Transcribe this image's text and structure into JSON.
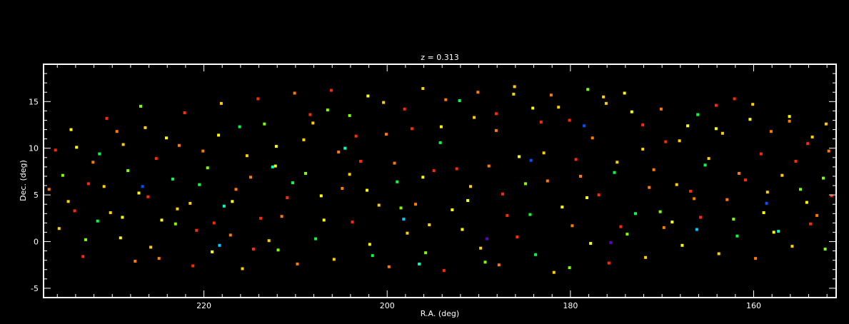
{
  "chart_data": {
    "type": "scatter",
    "title": "z = 0.313",
    "xlabel": "R.A. (deg)",
    "ylabel": "Dec. (deg)",
    "xlim": [
      237.5,
      151.0
    ],
    "ylim": [
      -6.0,
      19.0
    ],
    "x_ticks": [
      220,
      200,
      180,
      160
    ],
    "y_ticks": [
      -5,
      0,
      5,
      10,
      15
    ],
    "x_minor_step": 2,
    "y_minor_step": 1,
    "grid": false,
    "legend": "none",
    "background_color": "#000000",
    "axis_color": "#ffffff",
    "palette": [
      "#ff2a00",
      "#ff7a00",
      "#ffd000",
      "#ffff00",
      "#7cff00",
      "#00ff40",
      "#00ffc0",
      "#00c8ff",
      "#0050ff",
      "#6000c0"
    ],
    "points": [
      [
        236.2,
        9.8,
        0
      ],
      [
        235.4,
        7.1,
        4
      ],
      [
        234.8,
        4.3,
        2
      ],
      [
        233.9,
        10.1,
        3
      ],
      [
        232.6,
        6.2,
        0
      ],
      [
        231.4,
        9.4,
        5
      ],
      [
        230.2,
        3.1,
        2
      ],
      [
        229.5,
        11.8,
        1
      ],
      [
        228.3,
        7.6,
        4
      ],
      [
        227.1,
        5.2,
        3
      ],
      [
        226.4,
        12.2,
        2
      ],
      [
        225.2,
        8.9,
        0
      ],
      [
        224.6,
        2.3,
        3
      ],
      [
        223.4,
        6.7,
        5
      ],
      [
        222.7,
        10.3,
        1
      ],
      [
        221.5,
        4.1,
        2
      ],
      [
        220.8,
        1.2,
        0
      ],
      [
        219.6,
        7.9,
        4
      ],
      [
        218.4,
        11.4,
        3
      ],
      [
        217.8,
        3.8,
        6
      ],
      [
        216.5,
        5.6,
        1
      ],
      [
        215.3,
        9.2,
        2
      ],
      [
        214.6,
        -0.8,
        0
      ],
      [
        213.4,
        12.6,
        4
      ],
      [
        212.2,
        8.1,
        3
      ],
      [
        211.5,
        2.7,
        1
      ],
      [
        210.3,
        6.3,
        5
      ],
      [
        209.1,
        10.9,
        2
      ],
      [
        208.4,
        13.6,
        0
      ],
      [
        207.2,
        4.9,
        3
      ],
      [
        206.5,
        14.1,
        4
      ],
      [
        205.3,
        9.6,
        1
      ],
      [
        204.1,
        7.2,
        2
      ],
      [
        203.4,
        11.3,
        0
      ],
      [
        202.2,
        5.5,
        3
      ],
      [
        201.6,
        -1.5,
        5
      ],
      [
        200.4,
        14.9,
        2
      ],
      [
        199.2,
        8.4,
        1
      ],
      [
        198.5,
        3.6,
        4
      ],
      [
        197.3,
        12.1,
        0
      ],
      [
        196.1,
        6.9,
        3
      ],
      [
        195.4,
        1.8,
        2
      ],
      [
        194.2,
        10.6,
        5
      ],
      [
        193.6,
        15.2,
        1
      ],
      [
        192.4,
        7.8,
        0
      ],
      [
        191.2,
        4.4,
        3
      ],
      [
        190.5,
        13.3,
        2
      ],
      [
        189.3,
        -2.2,
        4
      ],
      [
        188.1,
        11.9,
        1
      ],
      [
        187.4,
        5.1,
        0
      ],
      [
        186.2,
        15.8,
        2
      ],
      [
        185.6,
        9.1,
        3
      ],
      [
        184.4,
        2.9,
        5
      ],
      [
        183.2,
        12.8,
        0
      ],
      [
        182.5,
        6.5,
        1
      ],
      [
        181.3,
        14.4,
        2
      ],
      [
        180.1,
        -2.8,
        4
      ],
      [
        179.4,
        8.8,
        0
      ],
      [
        178.2,
        4.7,
        3
      ],
      [
        177.6,
        11.1,
        1
      ],
      [
        176.4,
        15.5,
        2
      ],
      [
        175.2,
        7.4,
        5
      ],
      [
        174.5,
        1.6,
        0
      ],
      [
        173.3,
        13.9,
        3
      ],
      [
        172.1,
        9.9,
        2
      ],
      [
        171.4,
        5.8,
        1
      ],
      [
        170.2,
        3.2,
        4
      ],
      [
        169.6,
        10.7,
        0
      ],
      [
        168.4,
        6.1,
        2
      ],
      [
        167.2,
        12.4,
        3
      ],
      [
        166.5,
        4.6,
        1
      ],
      [
        165.3,
        8.2,
        5
      ],
      [
        164.1,
        14.6,
        0
      ],
      [
        163.4,
        11.6,
        2
      ],
      [
        162.2,
        2.4,
        4
      ],
      [
        161.6,
        7.3,
        1
      ],
      [
        160.4,
        13.1,
        3
      ],
      [
        159.2,
        9.4,
        0
      ],
      [
        158.5,
        5.3,
        2
      ],
      [
        157.3,
        1.1,
        6
      ],
      [
        156.1,
        12.9,
        1
      ],
      [
        155.4,
        8.6,
        0
      ],
      [
        154.2,
        4.2,
        3
      ],
      [
        153.6,
        11.2,
        2
      ],
      [
        152.4,
        6.8,
        4
      ],
      [
        151.8,
        9.7,
        1
      ],
      [
        235.8,
        1.4,
        2
      ],
      [
        233.2,
        -1.6,
        0
      ],
      [
        231.6,
        2.2,
        5
      ],
      [
        229.1,
        0.4,
        3
      ],
      [
        227.5,
        -2.1,
        1
      ],
      [
        225.8,
        -0.6,
        2
      ],
      [
        223.1,
        1.9,
        4
      ],
      [
        221.2,
        -2.6,
        0
      ],
      [
        219.1,
        -1.1,
        3
      ],
      [
        217.1,
        0.7,
        1
      ],
      [
        215.8,
        -2.9,
        2
      ],
      [
        213.8,
        2.5,
        0
      ],
      [
        211.9,
        -0.9,
        4
      ],
      [
        209.8,
        -2.4,
        1
      ],
      [
        207.8,
        0.3,
        5
      ],
      [
        205.8,
        -1.9,
        2
      ],
      [
        203.8,
        2.1,
        0
      ],
      [
        201.9,
        -0.3,
        3
      ],
      [
        199.8,
        -2.7,
        1
      ],
      [
        197.8,
        0.9,
        2
      ],
      [
        195.8,
        -1.2,
        4
      ],
      [
        193.8,
        -3.1,
        0
      ],
      [
        191.8,
        1.3,
        3
      ],
      [
        189.8,
        -0.7,
        2
      ],
      [
        187.8,
        -2.5,
        1
      ],
      [
        185.8,
        0.5,
        0
      ],
      [
        183.8,
        -1.4,
        5
      ],
      [
        181.8,
        -3.3,
        2
      ],
      [
        179.8,
        1.7,
        1
      ],
      [
        177.8,
        -0.2,
        3
      ],
      [
        175.8,
        -2.3,
        0
      ],
      [
        173.8,
        0.8,
        4
      ],
      [
        171.8,
        -1.7,
        2
      ],
      [
        169.8,
        1.5,
        1
      ],
      [
        167.8,
        -0.4,
        3
      ],
      [
        165.8,
        2.6,
        0
      ],
      [
        163.8,
        -1.3,
        2
      ],
      [
        161.8,
        0.6,
        5
      ],
      [
        159.8,
        -1.8,
        1
      ],
      [
        157.8,
        1.0,
        3
      ],
      [
        155.8,
        -0.5,
        2
      ],
      [
        153.8,
        1.9,
        0
      ],
      [
        152.2,
        -0.8,
        4
      ],
      [
        234.5,
        12.0,
        3
      ],
      [
        232.1,
        8.5,
        1
      ],
      [
        230.6,
        13.2,
        0
      ],
      [
        228.8,
        10.4,
        2
      ],
      [
        226.9,
        14.5,
        4
      ],
      [
        224.1,
        11.1,
        3
      ],
      [
        222.1,
        13.8,
        0
      ],
      [
        220.1,
        9.7,
        1
      ],
      [
        218.1,
        14.8,
        2
      ],
      [
        216.1,
        12.3,
        5
      ],
      [
        214.1,
        15.3,
        0
      ],
      [
        212.1,
        10.2,
        3
      ],
      [
        210.1,
        15.9,
        1
      ],
      [
        208.1,
        12.7,
        2
      ],
      [
        206.1,
        16.2,
        0
      ],
      [
        204.1,
        13.5,
        4
      ],
      [
        202.1,
        15.6,
        3
      ],
      [
        200.1,
        11.5,
        1
      ],
      [
        198.1,
        14.2,
        0
      ],
      [
        196.1,
        16.4,
        2
      ],
      [
        194.1,
        12.3,
        3
      ],
      [
        192.1,
        15.1,
        5
      ],
      [
        190.1,
        16.0,
        1
      ],
      [
        188.1,
        13.7,
        0
      ],
      [
        186.1,
        16.6,
        2
      ],
      [
        184.1,
        14.3,
        3
      ],
      [
        182.1,
        15.7,
        1
      ],
      [
        180.1,
        13.0,
        0
      ],
      [
        178.1,
        16.3,
        4
      ],
      [
        176.1,
        14.8,
        2
      ],
      [
        174.1,
        15.9,
        3
      ],
      [
        172.1,
        12.5,
        0
      ],
      [
        170.1,
        14.2,
        1
      ],
      [
        168.1,
        10.8,
        2
      ],
      [
        166.1,
        13.6,
        5
      ],
      [
        164.1,
        12.1,
        3
      ],
      [
        162.1,
        15.3,
        0
      ],
      [
        160.1,
        14.7,
        2
      ],
      [
        158.1,
        11.8,
        1
      ],
      [
        156.1,
        13.4,
        3
      ],
      [
        154.1,
        10.5,
        0
      ],
      [
        152.1,
        12.6,
        2
      ],
      [
        236.9,
        5.6,
        1
      ],
      [
        234.1,
        3.3,
        0
      ],
      [
        232.9,
        0.2,
        4
      ],
      [
        230.9,
        5.9,
        2
      ],
      [
        228.9,
        2.6,
        3
      ],
      [
        226.1,
        4.8,
        0
      ],
      [
        224.9,
        -1.8,
        1
      ],
      [
        222.9,
        3.5,
        2
      ],
      [
        220.5,
        6.1,
        5
      ],
      [
        218.9,
        2.0,
        0
      ],
      [
        216.9,
        4.3,
        3
      ],
      [
        214.9,
        6.9,
        1
      ],
      [
        212.9,
        0.1,
        2
      ],
      [
        210.9,
        4.7,
        0
      ],
      [
        208.9,
        7.3,
        4
      ],
      [
        206.9,
        2.3,
        3
      ],
      [
        204.9,
        5.7,
        1
      ],
      [
        202.9,
        8.6,
        0
      ],
      [
        200.9,
        3.9,
        2
      ],
      [
        198.9,
        6.4,
        5
      ],
      [
        196.9,
        4.0,
        1
      ],
      [
        194.9,
        7.6,
        0
      ],
      [
        192.9,
        3.4,
        3
      ],
      [
        190.9,
        5.9,
        2
      ],
      [
        188.9,
        8.1,
        1
      ],
      [
        186.9,
        2.8,
        0
      ],
      [
        184.9,
        6.2,
        4
      ],
      [
        182.9,
        9.5,
        2
      ],
      [
        180.9,
        3.7,
        3
      ],
      [
        178.9,
        7.0,
        1
      ],
      [
        176.9,
        5.0,
        0
      ],
      [
        174.9,
        8.5,
        2
      ],
      [
        172.9,
        3.0,
        5
      ],
      [
        170.9,
        7.7,
        1
      ],
      [
        168.9,
        2.1,
        3
      ],
      [
        166.9,
        5.4,
        0
      ],
      [
        164.9,
        8.9,
        2
      ],
      [
        162.9,
        4.5,
        1
      ],
      [
        160.9,
        6.6,
        0
      ],
      [
        158.9,
        3.1,
        3
      ],
      [
        156.9,
        7.1,
        2
      ],
      [
        154.9,
        5.6,
        4
      ],
      [
        153.1,
        2.8,
        1
      ],
      [
        151.5,
        4.9,
        0
      ],
      [
        212.5,
        8.0,
        6
      ],
      [
        198.2,
        2.4,
        7
      ],
      [
        184.3,
        8.7,
        8
      ],
      [
        175.6,
        -0.1,
        9
      ],
      [
        166.2,
        1.3,
        7
      ],
      [
        226.7,
        5.9,
        8
      ],
      [
        204.6,
        10.0,
        6
      ],
      [
        189.1,
        0.3,
        9
      ],
      [
        158.6,
        4.1,
        8
      ],
      [
        218.3,
        -0.4,
        7
      ],
      [
        196.5,
        -2.4,
        6
      ],
      [
        178.5,
        12.4,
        8
      ]
    ]
  }
}
